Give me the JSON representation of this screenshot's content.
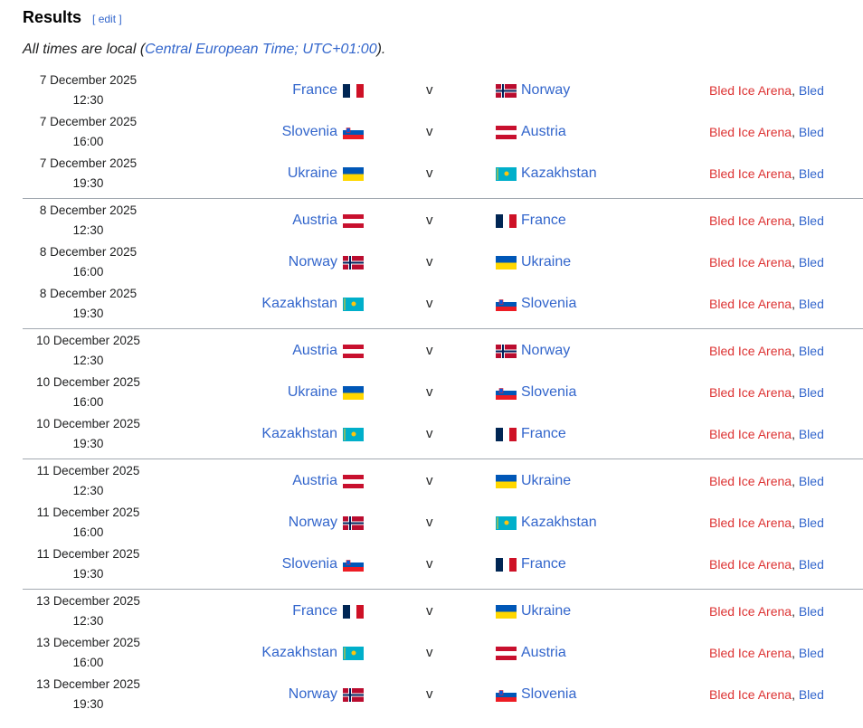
{
  "heading": {
    "title": "Results",
    "edit": "[ edit ]"
  },
  "note": {
    "prefix": "All times are local (",
    "link": "Central European Time; UTC+01:00",
    "suffix": ")."
  },
  "versus": "v",
  "venue_sep": ", ",
  "matches": [
    [
      {
        "date": "7 December 2025",
        "time": "12:30",
        "home": "France",
        "away": "Norway",
        "venue": "Bled Ice Arena",
        "city": "Bled"
      },
      {
        "date": "7 December 2025",
        "time": "16:00",
        "home": "Slovenia",
        "away": "Austria",
        "venue": "Bled Ice Arena",
        "city": "Bled"
      },
      {
        "date": "7 December 2025",
        "time": "19:30",
        "home": "Ukraine",
        "away": "Kazakhstan",
        "venue": "Bled Ice Arena",
        "city": "Bled"
      }
    ],
    [
      {
        "date": "8 December 2025",
        "time": "12:30",
        "home": "Austria",
        "away": "France",
        "venue": "Bled Ice Arena",
        "city": "Bled"
      },
      {
        "date": "8 December 2025",
        "time": "16:00",
        "home": "Norway",
        "away": "Ukraine",
        "venue": "Bled Ice Arena",
        "city": "Bled"
      },
      {
        "date": "8 December 2025",
        "time": "19:30",
        "home": "Kazakhstan",
        "away": "Slovenia",
        "venue": "Bled Ice Arena",
        "city": "Bled"
      }
    ],
    [
      {
        "date": "10 December 2025",
        "time": "12:30",
        "home": "Austria",
        "away": "Norway",
        "venue": "Bled Ice Arena",
        "city": "Bled"
      },
      {
        "date": "10 December 2025",
        "time": "16:00",
        "home": "Ukraine",
        "away": "Slovenia",
        "venue": "Bled Ice Arena",
        "city": "Bled"
      },
      {
        "date": "10 December 2025",
        "time": "19:30",
        "home": "Kazakhstan",
        "away": "France",
        "venue": "Bled Ice Arena",
        "city": "Bled"
      }
    ],
    [
      {
        "date": "11 December 2025",
        "time": "12:30",
        "home": "Austria",
        "away": "Ukraine",
        "venue": "Bled Ice Arena",
        "city": "Bled"
      },
      {
        "date": "11 December 2025",
        "time": "16:00",
        "home": "Norway",
        "away": "Kazakhstan",
        "venue": "Bled Ice Arena",
        "city": "Bled"
      },
      {
        "date": "11 December 2025",
        "time": "19:30",
        "home": "Slovenia",
        "away": "France",
        "venue": "Bled Ice Arena",
        "city": "Bled"
      }
    ],
    [
      {
        "date": "13 December 2025",
        "time": "12:30",
        "home": "France",
        "away": "Ukraine",
        "venue": "Bled Ice Arena",
        "city": "Bled"
      },
      {
        "date": "13 December 2025",
        "time": "16:00",
        "home": "Kazakhstan",
        "away": "Austria",
        "venue": "Bled Ice Arena",
        "city": "Bled"
      },
      {
        "date": "13 December 2025",
        "time": "19:30",
        "home": "Norway",
        "away": "Slovenia",
        "venue": "Bled Ice Arena",
        "city": "Bled"
      }
    ]
  ],
  "colors": {
    "link": "#3366cc",
    "redlink": "#dd3333",
    "divider": "#a2a9b1"
  }
}
